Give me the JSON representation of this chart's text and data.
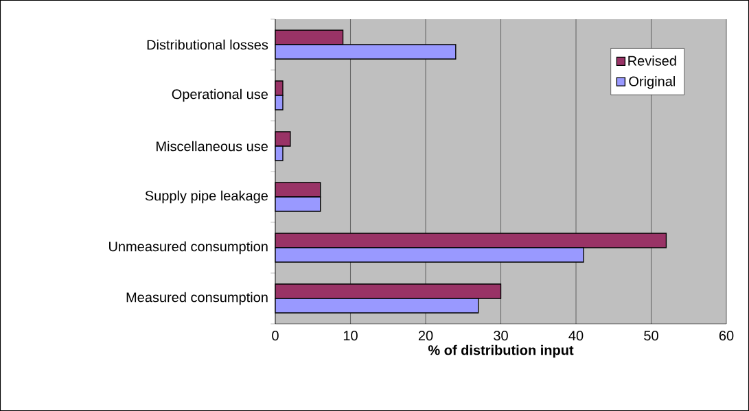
{
  "chart_data": {
    "type": "bar",
    "orientation": "horizontal",
    "xlabel": "% of distribution input",
    "categories": [
      "Distributional losses",
      "Operational use",
      "Miscellaneous use",
      "Supply pipe leakage",
      "Unmeasured consumption",
      "Measured consumption"
    ],
    "series": [
      {
        "name": "Revised",
        "color": "#993366",
        "values": [
          9,
          1,
          2,
          6,
          52,
          30
        ]
      },
      {
        "name": "Original",
        "color": "#9999ff",
        "values": [
          24,
          1,
          1,
          6,
          41,
          27
        ]
      }
    ],
    "xlim": [
      0,
      60
    ],
    "xticks": [
      0,
      10,
      20,
      30,
      40,
      50,
      60
    ],
    "grid": "x",
    "legend": "top right"
  }
}
